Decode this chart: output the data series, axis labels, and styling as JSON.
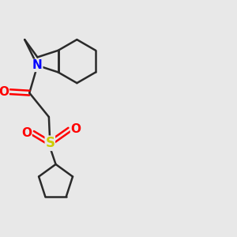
{
  "background_color": "#e8e8e8",
  "bond_color": "#2a2a2a",
  "N_color": "#0000ff",
  "O_color": "#ff0000",
  "S_color": "#cccc00",
  "bond_width": 1.8,
  "fig_size": [
    3.0,
    3.0
  ],
  "dpi": 100,
  "xlim": [
    0,
    10
  ],
  "ylim": [
    0,
    10
  ]
}
